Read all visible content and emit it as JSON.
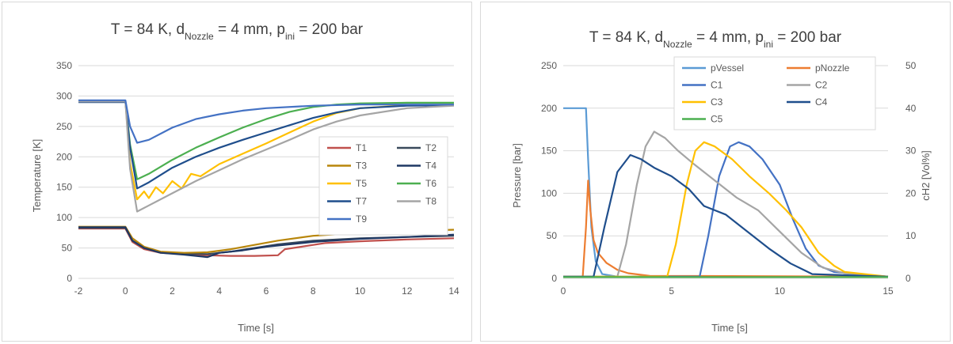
{
  "chart_data": [
    {
      "type": "line",
      "title": "T = 84 K, d_Nozzle = 4 mm, p_ini = 200 bar",
      "title_parts": {
        "a": "T = 84 K, d",
        "a_sub": "Nozzle",
        "b": " = 4 mm, p",
        "b_sub": "ini",
        "c": " = 200 bar"
      },
      "xlabel": "Time [s]",
      "ylabel": "Temperature [K]",
      "xlim": [
        -2,
        14
      ],
      "ylim": [
        0,
        350
      ],
      "xticks": [
        -2,
        0,
        2,
        4,
        6,
        8,
        10,
        12,
        14
      ],
      "yticks": [
        0,
        50,
        100,
        150,
        200,
        250,
        300,
        350
      ],
      "grid": "horizontal",
      "legend": "right, 2 columns",
      "series": [
        {
          "name": "T1",
          "color": "#c0504d",
          "points": [
            [
              -2,
              82
            ],
            [
              0,
              82
            ],
            [
              0.3,
              60
            ],
            [
              0.8,
              48
            ],
            [
              1.5,
              42
            ],
            [
              2.5,
              40
            ],
            [
              3.5,
              38
            ],
            [
              4.5,
              37
            ],
            [
              5.5,
              37
            ],
            [
              6.5,
              38
            ],
            [
              6.8,
              48
            ],
            [
              7.5,
              52
            ],
            [
              8.5,
              58
            ],
            [
              10,
              61
            ],
            [
              12,
              64
            ],
            [
              14,
              66
            ]
          ]
        },
        {
          "name": "T2",
          "color": "#3a4a5c",
          "points": [
            [
              -2,
              83
            ],
            [
              0,
              83
            ],
            [
              0.3,
              62
            ],
            [
              0.8,
              50
            ],
            [
              1.5,
              43
            ],
            [
              2.5,
              41
            ],
            [
              3.5,
              40
            ],
            [
              4.5,
              44
            ],
            [
              5.5,
              50
            ],
            [
              6.5,
              56
            ],
            [
              8,
              62
            ],
            [
              10,
              66
            ],
            [
              12,
              68
            ],
            [
              14,
              70
            ]
          ]
        },
        {
          "name": "T3",
          "color": "#b8860b",
          "points": [
            [
              -2,
              85
            ],
            [
              0,
              85
            ],
            [
              0.3,
              66
            ],
            [
              0.8,
              52
            ],
            [
              1.5,
              44
            ],
            [
              2.5,
              42
            ],
            [
              3.5,
              43
            ],
            [
              4.5,
              48
            ],
            [
              5.5,
              55
            ],
            [
              6.5,
              62
            ],
            [
              8,
              70
            ],
            [
              10,
              75
            ],
            [
              12,
              78
            ],
            [
              14,
              80
            ]
          ]
        },
        {
          "name": "T4",
          "color": "#1f3864",
          "points": [
            [
              -2,
              84
            ],
            [
              0,
              84
            ],
            [
              0.3,
              62
            ],
            [
              0.8,
              50
            ],
            [
              1.5,
              42
            ],
            [
              2.5,
              39
            ],
            [
              3.5,
              35
            ],
            [
              4,
              42
            ],
            [
              5,
              46
            ],
            [
              6,
              52
            ],
            [
              8,
              60
            ],
            [
              10,
              65
            ],
            [
              12,
              68
            ],
            [
              14,
              72
            ]
          ]
        },
        {
          "name": "T5",
          "color": "#ffc000",
          "points": [
            [
              -2,
              292
            ],
            [
              0,
              292
            ],
            [
              0.2,
              190
            ],
            [
              0.5,
              130
            ],
            [
              0.8,
              143
            ],
            [
              1,
              132
            ],
            [
              1.3,
              150
            ],
            [
              1.6,
              140
            ],
            [
              2,
              160
            ],
            [
              2.4,
              148
            ],
            [
              2.8,
              172
            ],
            [
              3.2,
              168
            ],
            [
              4,
              188
            ],
            [
              5,
              205
            ],
            [
              6,
              222
            ],
            [
              7,
              240
            ],
            [
              8,
              258
            ],
            [
              9,
              272
            ],
            [
              10,
              280
            ],
            [
              12,
              285
            ],
            [
              14,
              286
            ]
          ]
        },
        {
          "name": "T6",
          "color": "#4caf50",
          "points": [
            [
              -2,
              292
            ],
            [
              0,
              292
            ],
            [
              0.2,
              220
            ],
            [
              0.5,
              163
            ],
            [
              1,
              172
            ],
            [
              2,
              195
            ],
            [
              3,
              215
            ],
            [
              4,
              232
            ],
            [
              5,
              248
            ],
            [
              6,
              262
            ],
            [
              7,
              274
            ],
            [
              8,
              282
            ],
            [
              9,
              286
            ],
            [
              10,
              288
            ],
            [
              12,
              289
            ],
            [
              14,
              289
            ]
          ]
        },
        {
          "name": "T7",
          "color": "#1f4e8c",
          "points": [
            [
              -2,
              290
            ],
            [
              0,
              290
            ],
            [
              0.2,
              215
            ],
            [
              0.5,
              148
            ],
            [
              1,
              158
            ],
            [
              2,
              182
            ],
            [
              3,
              200
            ],
            [
              4,
              215
            ],
            [
              5,
              228
            ],
            [
              6,
              240
            ],
            [
              7,
              252
            ],
            [
              8,
              264
            ],
            [
              9,
              273
            ],
            [
              10,
              280
            ],
            [
              12,
              284
            ],
            [
              14,
              285
            ]
          ]
        },
        {
          "name": "T8",
          "color": "#a5a5a5",
          "points": [
            [
              -2,
              291
            ],
            [
              0,
              291
            ],
            [
              0.2,
              180
            ],
            [
              0.5,
              110
            ],
            [
              1,
              120
            ],
            [
              2,
              140
            ],
            [
              3,
              160
            ],
            [
              4,
              178
            ],
            [
              5,
              196
            ],
            [
              6,
              212
            ],
            [
              7,
              228
            ],
            [
              8,
              245
            ],
            [
              9,
              258
            ],
            [
              10,
              268
            ],
            [
              12,
              280
            ],
            [
              14,
              284
            ]
          ]
        },
        {
          "name": "T9",
          "color": "#4472c4",
          "points": [
            [
              -2,
              293
            ],
            [
              0,
              293
            ],
            [
              0.2,
              250
            ],
            [
              0.5,
              223
            ],
            [
              1,
              228
            ],
            [
              2,
              248
            ],
            [
              3,
              262
            ],
            [
              4,
              270
            ],
            [
              5,
              276
            ],
            [
              6,
              280
            ],
            [
              8,
              284
            ],
            [
              10,
              286
            ],
            [
              12,
              286
            ],
            [
              14,
              286
            ]
          ]
        }
      ]
    },
    {
      "type": "line",
      "title": "T = 84 K, d_Nozzle = 4 mm, p_ini = 200 bar",
      "title_parts": {
        "a": "T = 84 K, d",
        "a_sub": "Nozzle",
        "b": " = 4 mm, p",
        "b_sub": "ini",
        "c": " = 200 bar"
      },
      "xlabel": "Time [s]",
      "ylabel": "Pressure [bar]",
      "y2label": "cH2 [Vol%]",
      "xlim": [
        0,
        15
      ],
      "ylim": [
        0,
        250
      ],
      "y2lim": [
        0,
        50
      ],
      "xticks": [
        0,
        5,
        10,
        15
      ],
      "yticks": [
        0,
        50,
        100,
        150,
        200,
        250
      ],
      "y2ticks": [
        0,
        10,
        20,
        30,
        40,
        50
      ],
      "grid": "horizontal",
      "legend": "top, 2 columns",
      "series": [
        {
          "name": "pVessel",
          "color": "#5b9bd5",
          "axis": "left",
          "points": [
            [
              0,
              200
            ],
            [
              1.05,
              200
            ],
            [
              1.15,
              140
            ],
            [
              1.3,
              60
            ],
            [
              1.5,
              20
            ],
            [
              1.8,
              5
            ],
            [
              2.5,
              2
            ],
            [
              15,
              2
            ]
          ]
        },
        {
          "name": "pNozzle",
          "color": "#ed7d31",
          "axis": "left",
          "points": [
            [
              0,
              2
            ],
            [
              0.9,
              2
            ],
            [
              1.05,
              60
            ],
            [
              1.15,
              115
            ],
            [
              1.25,
              80
            ],
            [
              1.4,
              45
            ],
            [
              1.6,
              30
            ],
            [
              2,
              18
            ],
            [
              2.5,
              10
            ],
            [
              3,
              6
            ],
            [
              4,
              3
            ],
            [
              15,
              2
            ]
          ]
        },
        {
          "name": "C1",
          "color": "#4472c4",
          "axis": "right",
          "points": [
            [
              0,
              0.4
            ],
            [
              6.3,
              0.4
            ],
            [
              6.7,
              10
            ],
            [
              7.2,
              24
            ],
            [
              7.7,
              31
            ],
            [
              8.1,
              32
            ],
            [
              8.6,
              31
            ],
            [
              9.2,
              28
            ],
            [
              10,
              22
            ],
            [
              10.6,
              14
            ],
            [
              11.2,
              7
            ],
            [
              11.8,
              3
            ],
            [
              12.5,
              1.5
            ],
            [
              15,
              0.4
            ]
          ]
        },
        {
          "name": "C2",
          "color": "#a5a5a5",
          "axis": "right",
          "points": [
            [
              0,
              0.4
            ],
            [
              2.5,
              0.4
            ],
            [
              2.9,
              8
            ],
            [
              3.4,
              22
            ],
            [
              3.8,
              31
            ],
            [
              4.2,
              34.5
            ],
            [
              4.7,
              33
            ],
            [
              5.3,
              30
            ],
            [
              6,
              27
            ],
            [
              7,
              23
            ],
            [
              8,
              19
            ],
            [
              9,
              16
            ],
            [
              10,
              11
            ],
            [
              11,
              6
            ],
            [
              12,
              2.5
            ],
            [
              13,
              1.2
            ],
            [
              15,
              0.4
            ]
          ]
        },
        {
          "name": "C3",
          "color": "#ffc000",
          "axis": "right",
          "points": [
            [
              0,
              0.4
            ],
            [
              4.8,
              0.4
            ],
            [
              5.2,
              8
            ],
            [
              5.7,
              22
            ],
            [
              6.1,
              30
            ],
            [
              6.5,
              32
            ],
            [
              7,
              31
            ],
            [
              7.8,
              28
            ],
            [
              8.6,
              24
            ],
            [
              9.5,
              20
            ],
            [
              10.3,
              16
            ],
            [
              11,
              12
            ],
            [
              11.8,
              6
            ],
            [
              12.5,
              3
            ],
            [
              13,
              1.5
            ],
            [
              15,
              0.4
            ]
          ]
        },
        {
          "name": "C4",
          "color": "#1f4e8c",
          "axis": "right",
          "points": [
            [
              0,
              0.4
            ],
            [
              1.4,
              0.4
            ],
            [
              1.9,
              12
            ],
            [
              2.5,
              25
            ],
            [
              3.1,
              29
            ],
            [
              3.6,
              28
            ],
            [
              4.2,
              26
            ],
            [
              5,
              24
            ],
            [
              5.8,
              21
            ],
            [
              6.5,
              17
            ],
            [
              7.5,
              15
            ],
            [
              8.5,
              11
            ],
            [
              9.5,
              7
            ],
            [
              10.5,
              3.5
            ],
            [
              11.5,
              1
            ],
            [
              15,
              0.4
            ]
          ]
        },
        {
          "name": "C5",
          "color": "#4caf50",
          "axis": "right",
          "points": [
            [
              0,
              0.3
            ],
            [
              15,
              0.3
            ]
          ]
        }
      ]
    }
  ]
}
